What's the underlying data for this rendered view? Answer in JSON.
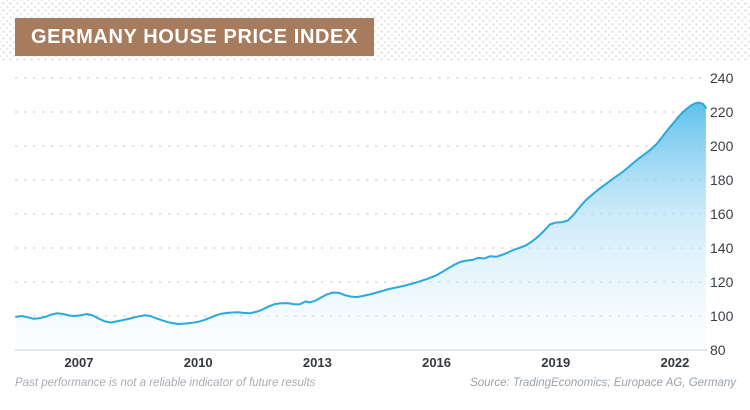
{
  "page": {
    "title_label": "GERMANY HOUSE PRICE INDEX"
  },
  "footer": {
    "disclaimer": "Past performance is not a reliable indicator of future results",
    "source": "Source: TradingEconomics; Europace AG, Germany"
  },
  "colors": {
    "title_bg": "#a77c5e",
    "line": "#29a8e2",
    "fill_top": "#55bdeb",
    "fill_mid": "#a9dcf5",
    "fill_bottom": "#f2fafe",
    "grid": "#d9d9d9",
    "axis_line": "#e2e5e8",
    "tick_text": "#3a3f44"
  },
  "chart_data": {
    "type": "area",
    "title": "GERMANY HOUSE PRICE INDEX",
    "xlabel": "",
    "ylabel": "",
    "x_ticks": [
      2007,
      2010,
      2013,
      2016,
      2019,
      2022
    ],
    "y_ticks": [
      240,
      220,
      200,
      180,
      160,
      140,
      120,
      100,
      80
    ],
    "ylim": [
      80,
      248
    ],
    "xlim": [
      2005.4,
      2022.9
    ],
    "grid": "horizontal-dashed",
    "legend": "none",
    "series": [
      {
        "name": "Germany House Price Index",
        "points": [
          [
            2005.42,
            99.5
          ],
          [
            2005.55,
            100
          ],
          [
            2005.7,
            99.3
          ],
          [
            2005.85,
            98.4
          ],
          [
            2006.0,
            98.7
          ],
          [
            2006.15,
            99.5
          ],
          [
            2006.3,
            100.8
          ],
          [
            2006.45,
            101.6
          ],
          [
            2006.6,
            101.2
          ],
          [
            2006.75,
            100.3
          ],
          [
            2006.9,
            100.0
          ],
          [
            2007.05,
            100.4
          ],
          [
            2007.2,
            101.2
          ],
          [
            2007.35,
            100.3
          ],
          [
            2007.5,
            98.4
          ],
          [
            2007.65,
            96.8
          ],
          [
            2007.8,
            96.2
          ],
          [
            2007.95,
            96.8
          ],
          [
            2008.1,
            97.6
          ],
          [
            2008.3,
            98.6
          ],
          [
            2008.5,
            99.8
          ],
          [
            2008.65,
            100.4
          ],
          [
            2008.8,
            100.0
          ],
          [
            2008.95,
            98.6
          ],
          [
            2009.1,
            97.4
          ],
          [
            2009.3,
            96.0
          ],
          [
            2009.5,
            95.3
          ],
          [
            2009.7,
            95.6
          ],
          [
            2009.85,
            96.0
          ],
          [
            2010.0,
            96.6
          ],
          [
            2010.15,
            97.6
          ],
          [
            2010.3,
            99.0
          ],
          [
            2010.45,
            100.4
          ],
          [
            2010.6,
            101.4
          ],
          [
            2010.8,
            102.0
          ],
          [
            2011.0,
            102.2
          ],
          [
            2011.15,
            101.8
          ],
          [
            2011.3,
            101.6
          ],
          [
            2011.45,
            102.4
          ],
          [
            2011.6,
            103.6
          ],
          [
            2011.75,
            105.4
          ],
          [
            2011.9,
            106.8
          ],
          [
            2012.05,
            107.4
          ],
          [
            2012.25,
            107.6
          ],
          [
            2012.4,
            107.0
          ],
          [
            2012.55,
            106.8
          ],
          [
            2012.7,
            108.6
          ],
          [
            2012.8,
            108.0
          ],
          [
            2012.95,
            109.0
          ],
          [
            2013.1,
            111.0
          ],
          [
            2013.25,
            112.8
          ],
          [
            2013.4,
            113.8
          ],
          [
            2013.55,
            113.6
          ],
          [
            2013.7,
            112.2
          ],
          [
            2013.85,
            111.4
          ],
          [
            2014.0,
            111.2
          ],
          [
            2014.15,
            111.8
          ],
          [
            2014.3,
            112.6
          ],
          [
            2014.5,
            113.8
          ],
          [
            2014.65,
            114.8
          ],
          [
            2014.8,
            115.9
          ],
          [
            2015.0,
            116.8
          ],
          [
            2015.2,
            117.9
          ],
          [
            2015.4,
            119.1
          ],
          [
            2015.6,
            120.5
          ],
          [
            2015.8,
            122.1
          ],
          [
            2016.0,
            124.0
          ],
          [
            2016.15,
            126.0
          ],
          [
            2016.3,
            128.2
          ],
          [
            2016.45,
            130.2
          ],
          [
            2016.6,
            131.8
          ],
          [
            2016.75,
            132.6
          ],
          [
            2016.9,
            133.0
          ],
          [
            2017.05,
            134.2
          ],
          [
            2017.2,
            133.8
          ],
          [
            2017.35,
            135.2
          ],
          [
            2017.5,
            134.8
          ],
          [
            2017.65,
            136.0
          ],
          [
            2017.8,
            137.4
          ],
          [
            2017.95,
            139.0
          ],
          [
            2018.1,
            140.2
          ],
          [
            2018.25,
            141.6
          ],
          [
            2018.4,
            143.8
          ],
          [
            2018.55,
            146.6
          ],
          [
            2018.7,
            150.0
          ],
          [
            2018.85,
            153.8
          ],
          [
            2019.0,
            155.0
          ],
          [
            2019.15,
            155.2
          ],
          [
            2019.3,
            156.2
          ],
          [
            2019.45,
            159.5
          ],
          [
            2019.6,
            164.0
          ],
          [
            2019.75,
            168.0
          ],
          [
            2019.9,
            171.0
          ],
          [
            2020.05,
            174.0
          ],
          [
            2020.2,
            176.6
          ],
          [
            2020.35,
            179.2
          ],
          [
            2020.5,
            181.8
          ],
          [
            2020.65,
            184.2
          ],
          [
            2020.8,
            187.0
          ],
          [
            2020.95,
            190.0
          ],
          [
            2021.1,
            192.8
          ],
          [
            2021.25,
            195.4
          ],
          [
            2021.4,
            198.2
          ],
          [
            2021.55,
            201.5
          ],
          [
            2021.7,
            206.0
          ],
          [
            2021.85,
            210.5
          ],
          [
            2022.0,
            214.5
          ],
          [
            2022.1,
            217.5
          ],
          [
            2022.2,
            220.0
          ],
          [
            2022.3,
            222.0
          ],
          [
            2022.4,
            223.8
          ],
          [
            2022.5,
            225.0
          ],
          [
            2022.6,
            225.6
          ],
          [
            2022.7,
            224.8
          ],
          [
            2022.78,
            222.5
          ]
        ]
      }
    ]
  }
}
